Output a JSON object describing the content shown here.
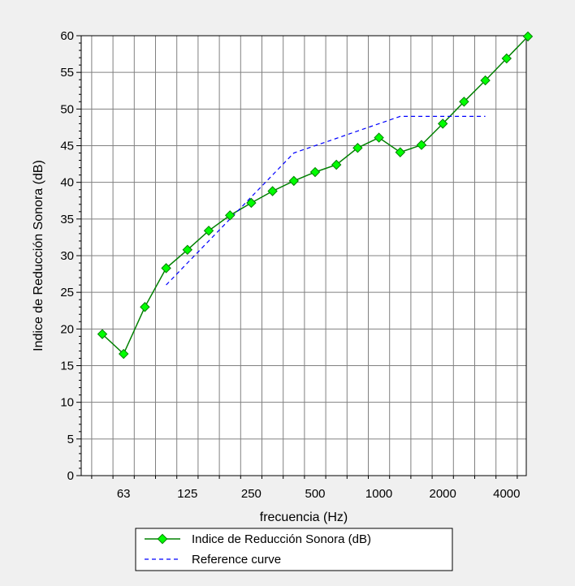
{
  "chart_data": {
    "type": "line",
    "title": "",
    "xlabel": "frecuencia (Hz)",
    "ylabel": "Indice de Reducción Sonora (dB)",
    "ylim": [
      0,
      60
    ],
    "yticks": [
      0,
      5,
      10,
      15,
      20,
      25,
      30,
      35,
      40,
      45,
      50,
      55,
      60
    ],
    "x": [
      "50",
      "63",
      "80",
      "100",
      "125",
      "160",
      "200",
      "250",
      "315",
      "400",
      "500",
      "630",
      "800",
      "1000",
      "1250",
      "1600",
      "2000",
      "2500",
      "3150",
      "4000",
      "5000"
    ],
    "xtick_labels": [
      {
        "x": "63",
        "label": "63"
      },
      {
        "x": "125",
        "label": "125"
      },
      {
        "x": "250",
        "label": "250"
      },
      {
        "x": "500",
        "label": "500"
      },
      {
        "x": "1000",
        "label": "1000"
      },
      {
        "x": "2000",
        "label": "2000"
      },
      {
        "x": "4000",
        "label": "4000"
      }
    ],
    "grid": true,
    "legend_position": "bottom",
    "series": [
      {
        "name": "Indice de Reducción Sonora (dB)",
        "color": "#008000",
        "marker_color": "#00ff00",
        "style": "solid-diamond",
        "values": [
          19.3,
          16.6,
          23.0,
          28.3,
          30.8,
          33.4,
          35.5,
          37.2,
          38.8,
          40.2,
          41.4,
          42.4,
          44.7,
          46.1,
          44.1,
          45.1,
          48.0,
          51.0,
          53.9,
          56.9,
          59.9
        ]
      },
      {
        "name": "Reference curve",
        "color": "#0000ff",
        "style": "dashed",
        "values": [
          null,
          null,
          null,
          26,
          29,
          32,
          35,
          38,
          41,
          44,
          45,
          46,
          47,
          48,
          49,
          49,
          49,
          49,
          49,
          null,
          null
        ]
      }
    ]
  }
}
